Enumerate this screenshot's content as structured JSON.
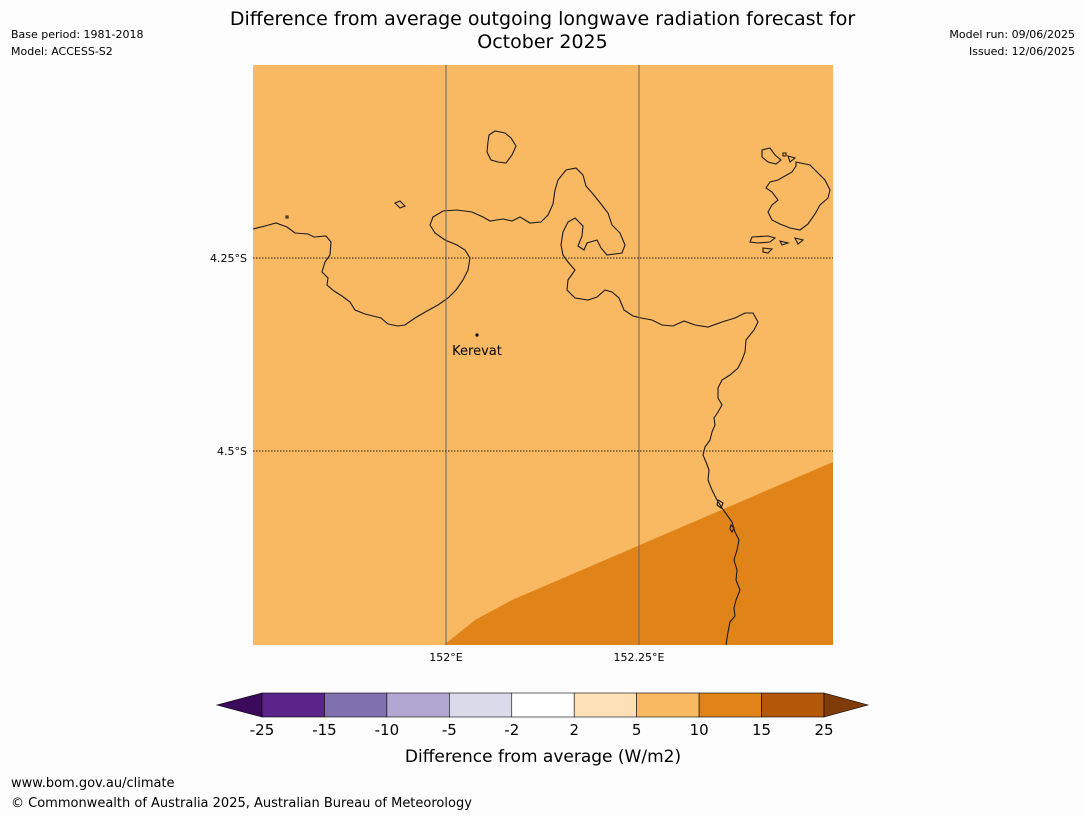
{
  "header": {
    "title_line1": "Difference from average outgoing longwave radiation forecast for",
    "title_line2": "October 2025",
    "base_period": "Base period: 1981-2018",
    "model": "Model: ACCESS-S2",
    "model_run": "Model run: 09/06/2025",
    "issued": "Issued: 12/06/2025"
  },
  "map": {
    "lat_labels": [
      "4.25°S",
      "4.5°S"
    ],
    "lon_labels": [
      "152°E",
      "152.25°E"
    ],
    "place_name": "Kerevat",
    "fill_colors": {
      "band_5_10": "#f9b862",
      "band_10_15": "#e0841a"
    }
  },
  "colorbar": {
    "ticks": [
      "-25",
      "-15",
      "-10",
      "-5",
      "-2",
      "2",
      "5",
      "10",
      "15",
      "25"
    ],
    "colors": [
      "#3b0a5c",
      "#59238a",
      "#8170b0",
      "#b1a7d2",
      "#dadaeb",
      "#ffffff",
      "#fee0b6",
      "#f9b862",
      "#e0841a",
      "#b45706",
      "#7f3b08"
    ],
    "label": "Difference from average (W/m2)"
  },
  "footer": {
    "url": "www.bom.gov.au/climate",
    "copyright": "© Commonwealth of Australia 2025, Australian Bureau of Meteorology"
  }
}
